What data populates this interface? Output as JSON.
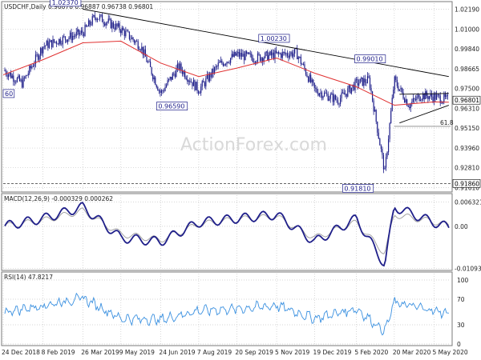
{
  "header": {
    "price_title": "USDCHF,Daily  0.96878 0.96887 0.96738 0.96801",
    "macd_title": "MACD(12,26,9) -0.000329 0.000262",
    "rsi_title": "RSI(14) 47.8217"
  },
  "watermark": "ActionForex.com",
  "colors": {
    "candles": "#1f1f8a",
    "ma": "#e03030",
    "trendline": "#000000",
    "macd": "#1f1f8a",
    "signal": "#9a9a9a",
    "rsi": "#3a90e0",
    "grid": "#c8c8c8"
  },
  "x_labels": [
    "24 Dec 2018",
    "8 Feb 2019",
    "26 Mar 2019",
    "9 May 2019",
    "24 Jun 2019",
    "7 Aug 2019",
    "20 Sep 2019",
    "5 Nov 2019",
    "19 Dec 2019",
    "5 Feb 2020",
    "20 Mar 2020",
    "5 May 2020"
  ],
  "price_axis": [
    "1.02190",
    "1.01000",
    "0.99840",
    "0.98665",
    "0.97500",
    "0.96310",
    "0.95150",
    "0.93960",
    "0.92810",
    "0.91610"
  ],
  "price_tags": {
    "current": "0.96801",
    "low": "0.91860"
  },
  "annotations": [
    {
      "label": "1.02370"
    },
    {
      "label": "0.96590"
    },
    {
      "label": "1.00230"
    },
    {
      "label": "0.99010"
    },
    {
      "label": "0.91810"
    },
    {
      "label": "60"
    }
  ],
  "fib_label": "61.8",
  "macd_axis": [
    "0.006321",
    "0.00",
    "-0.010939"
  ],
  "rsi_axis": [
    "100",
    "70",
    "30",
    "0"
  ],
  "chart_data": {
    "type": "line",
    "title": "USDCHF,Daily",
    "panels": [
      {
        "name": "price",
        "ylim": [
          0.9145,
          1.0255
        ],
        "series": [
          {
            "name": "",
            "kind": "candles",
            "x": [
              "2018-12-24",
              "2019-01-15",
              "2019-02-08",
              "2019-03-01",
              "2019-03-26",
              "2019-04-10",
              "2019-05-09",
              "2019-06-01",
              "2019-06-24",
              "2019-07-15",
              "2019-08-07",
              "2019-08-30",
              "2019-09-20",
              "2019-10-10",
              "2019-11-05",
              "2019-11-28",
              "2019-12-19",
              "2020-01-15",
              "2020-02-05",
              "2020-02-20",
              "2020-03-09",
              "2020-03-20",
              "2020-04-06",
              "2020-04-20",
              "2020-05-05",
              "2020-05-22"
            ],
            "values": [
              0.986,
              0.978,
              1.0,
              1.004,
              1.008,
              1.018,
              1.01,
              1.0,
              0.972,
              0.988,
              0.974,
              0.989,
              0.995,
              0.993,
              0.995,
              0.996,
              0.974,
              0.968,
              0.978,
              0.98,
              0.925,
              0.98,
              0.965,
              0.971,
              0.97,
              0.968
            ]
          },
          {
            "name": "",
            "kind": "moving-average",
            "x": [
              "2018-12-24",
              "2019-02-08",
              "2019-03-26",
              "2019-05-09",
              "2019-06-24",
              "2019-08-07",
              "2019-09-20",
              "2019-11-05",
              "2019-12-19",
              "2020-02-05",
              "2020-03-20",
              "2020-05-05",
              "2020-05-22"
            ],
            "values": [
              0.983,
              0.992,
              1.002,
              1.003,
              0.99,
              0.982,
              0.987,
              0.993,
              0.984,
              0.976,
              0.965,
              0.967,
              0.9668
            ]
          }
        ],
        "trendlines": [
          {
            "from": [
              "2019-03-26",
              1.022
            ],
            "to": [
              "2020-05-22",
              0.982
            ]
          },
          {
            "from": [
              "2020-03-26",
              0.9715
            ],
            "to": [
              "2020-05-22",
              0.972
            ]
          },
          {
            "from": [
              "2020-03-26",
              0.9545
            ],
            "to": [
              "2020-05-22",
              0.965
            ]
          }
        ],
        "horizontal_levels": [
          {
            "value": 0.9186,
            "style": "dashed"
          },
          {
            "value": 0.9525,
            "label": "61.8"
          }
        ]
      },
      {
        "name": "macd",
        "ylim": [
          -0.011,
          0.0064
        ],
        "series": [
          {
            "name": "",
            "x": [
              "2018-12-24",
              "2019-02-08",
              "2019-03-26",
              "2019-05-09",
              "2019-06-24",
              "2019-08-07",
              "2019-09-20",
              "2019-11-05",
              "2019-12-19",
              "2020-02-05",
              "2020-03-09",
              "2020-03-20",
              "2020-05-05",
              "2020-05-22"
            ],
            "values": [
              0.0,
              0.002,
              0.005,
              -0.003,
              -0.004,
              0.001,
              0.002,
              0.003,
              -0.004,
              0.002,
              -0.01,
              0.005,
              0.001,
              -0.0003
            ]
          },
          {
            "name": "",
            "x": [
              "2018-12-24",
              "2019-02-08",
              "2019-03-26",
              "2019-05-09",
              "2019-06-24",
              "2019-08-07",
              "2019-09-20",
              "2019-11-05",
              "2019-12-19",
              "2020-02-05",
              "2020-03-09",
              "2020-03-20",
              "2020-05-05",
              "2020-05-22"
            ],
            "values": [
              0.0,
              0.0015,
              0.004,
              -0.002,
              -0.0035,
              0.0005,
              0.0018,
              0.0025,
              -0.003,
              0.001,
              -0.007,
              0.003,
              0.0012,
              0.0003
            ]
          }
        ]
      },
      {
        "name": "rsi",
        "ylim": [
          0,
          100
        ],
        "series": [
          {
            "name": "",
            "x": [
              "2018-12-24",
              "2019-02-08",
              "2019-03-26",
              "2019-05-09",
              "2019-06-24",
              "2019-08-07",
              "2019-09-20",
              "2019-11-05",
              "2019-12-19",
              "2020-02-05",
              "2020-03-09",
              "2020-03-20",
              "2020-05-05",
              "2020-05-22"
            ],
            "values": [
              50,
              60,
              72,
              40,
              38,
              52,
              55,
              60,
              40,
              55,
              20,
              65,
              52,
              47.8
            ]
          }
        ]
      }
    ]
  }
}
